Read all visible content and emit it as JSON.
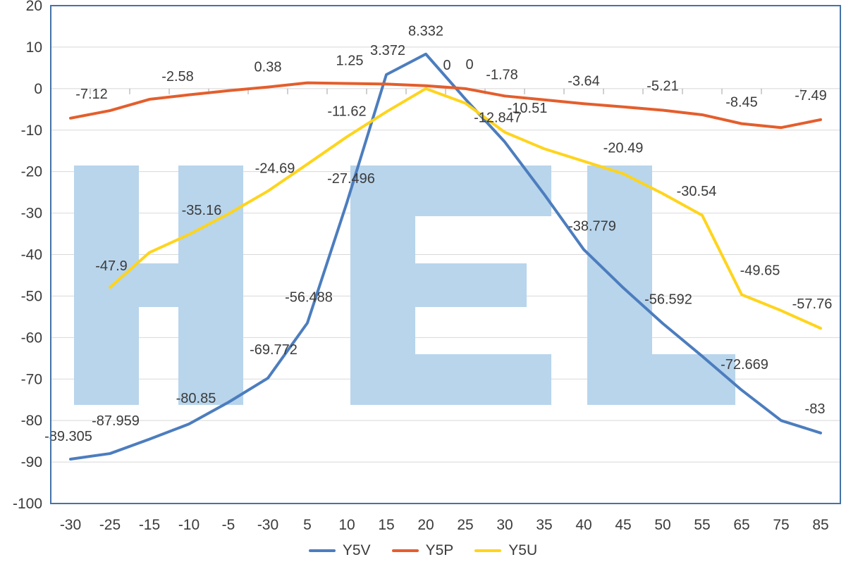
{
  "watermark": {
    "text": "HEL",
    "color": "#b8d5ec"
  },
  "colors": {
    "frame": "#4472a8",
    "grid": "#d8d8d8",
    "tick": "#a0a0a0",
    "label": "#3b3b3b",
    "background": "#ffffff"
  },
  "chart_data": {
    "type": "line",
    "title": "",
    "xlabel": "",
    "ylabel": "",
    "grid": true,
    "legend_position": "bottom",
    "categories": [
      "-30",
      "-25",
      "-15",
      "-10",
      "-5",
      "-30",
      "5",
      "10",
      "15",
      "20",
      "25",
      "30",
      "35",
      "40",
      "45",
      "50",
      "55",
      "65",
      "75",
      "85"
    ],
    "y_axis": {
      "min": -100,
      "max": 20,
      "step": 10,
      "labels": [
        "20",
        "10",
        "0",
        "-10",
        "-20",
        "-30",
        "-40",
        "-50",
        "-60",
        "-70",
        "-80",
        "-90",
        "-100"
      ]
    },
    "series": [
      {
        "name": "Y5V",
        "color": "#4c7dbe",
        "values": [
          -89.305,
          -87.959,
          -84.5,
          -80.85,
          -75.6,
          -69.772,
          -56.488,
          -27.496,
          3.372,
          8.332,
          -2.5,
          -12.847,
          -25.5,
          -38.779,
          -48,
          -56.592,
          -64.5,
          -72.669,
          -80,
          -83
        ],
        "point_labels": [
          {
            "i": 0,
            "text": "-89.305",
            "dx": -3,
            "dy": -26
          },
          {
            "i": 1,
            "text": "-87.959",
            "dx": 8,
            "dy": -40
          },
          {
            "i": 3,
            "text": "-80.85",
            "dx": 10,
            "dy": -30
          },
          {
            "i": 5,
            "text": "-69.772",
            "dx": 8,
            "dy": -34
          },
          {
            "i": 6,
            "text": "-56.488",
            "dx": 2,
            "dy": -30
          },
          {
            "i": 7,
            "text": "-27.496",
            "dx": 6,
            "dy": -28
          },
          {
            "i": 8,
            "text": "3.372",
            "dx": 2,
            "dy": -28
          },
          {
            "i": 9,
            "text": "8.332",
            "dx": 0,
            "dy": -26
          },
          {
            "i": 11,
            "text": "-12.847",
            "dx": -10,
            "dy": -28
          },
          {
            "i": 13,
            "text": "-38.779",
            "dx": 12,
            "dy": -27
          },
          {
            "i": 15,
            "text": "-56.592",
            "dx": 8,
            "dy": -28
          },
          {
            "i": 17,
            "text": "-72.669",
            "dx": 4,
            "dy": -30
          },
          {
            "i": 19,
            "text": "-83",
            "dx": -8,
            "dy": -28
          }
        ]
      },
      {
        "name": "Y5P",
        "color": "#e45e2c",
        "values": [
          -7.12,
          -5.3,
          -2.58,
          -1.5,
          -0.5,
          0.38,
          1.4,
          1.25,
          1.1,
          0.7,
          0,
          -1.78,
          -2.7,
          -3.64,
          -4.4,
          -5.21,
          -6.3,
          -8.45,
          -9.4,
          -7.49
        ],
        "point_labels": [
          {
            "i": 0,
            "text": "-7.12",
            "dx": 30,
            "dy": -28
          },
          {
            "i": 2,
            "text": "-2.58",
            "dx": 40,
            "dy": -26
          },
          {
            "i": 5,
            "text": "0.38",
            "dx": 0,
            "dy": -22
          },
          {
            "i": 7,
            "text": "1.25",
            "dx": 4,
            "dy": -26
          },
          {
            "i": 10,
            "text": "0",
            "dx": 6,
            "dy": -28
          },
          {
            "i": 11,
            "text": "-1.78",
            "dx": -4,
            "dy": -24
          },
          {
            "i": 13,
            "text": "-3.64",
            "dx": 0,
            "dy": -26
          },
          {
            "i": 15,
            "text": "-5.21",
            "dx": 0,
            "dy": -28
          },
          {
            "i": 17,
            "text": "-8.45",
            "dx": 0,
            "dy": -24
          },
          {
            "i": 19,
            "text": "-7.49",
            "dx": -14,
            "dy": -28
          }
        ]
      },
      {
        "name": "Y5U",
        "color": "#ffd41c",
        "values": [
          null,
          -47.9,
          -39.5,
          -35.16,
          -30.2,
          -24.69,
          -18.2,
          -11.62,
          -5.6,
          0,
          -3.5,
          -10.51,
          -14.5,
          -17.5,
          -20.49,
          -25.3,
          -30.54,
          -49.65,
          -53.5,
          -57.76
        ],
        "point_labels": [
          {
            "i": 1,
            "text": "-47.9",
            "dx": 2,
            "dy": -24
          },
          {
            "i": 3,
            "text": "-35.16",
            "dx": 18,
            "dy": -28
          },
          {
            "i": 5,
            "text": "-24.69",
            "dx": 10,
            "dy": -26
          },
          {
            "i": 7,
            "text": "-11.62",
            "dx": 0,
            "dy": -30
          },
          {
            "i": 9,
            "text": "0",
            "dx": 30,
            "dy": -27
          },
          {
            "i": 11,
            "text": "-10.51",
            "dx": 32,
            "dy": -28
          },
          {
            "i": 14,
            "text": "-20.49",
            "dx": 0,
            "dy": -30
          },
          {
            "i": 16,
            "text": "-30.54",
            "dx": -8,
            "dy": -28
          },
          {
            "i": 17,
            "text": "-49.65",
            "dx": 26,
            "dy": -28
          },
          {
            "i": 19,
            "text": "-57.76",
            "dx": -12,
            "dy": -28
          }
        ]
      }
    ]
  }
}
